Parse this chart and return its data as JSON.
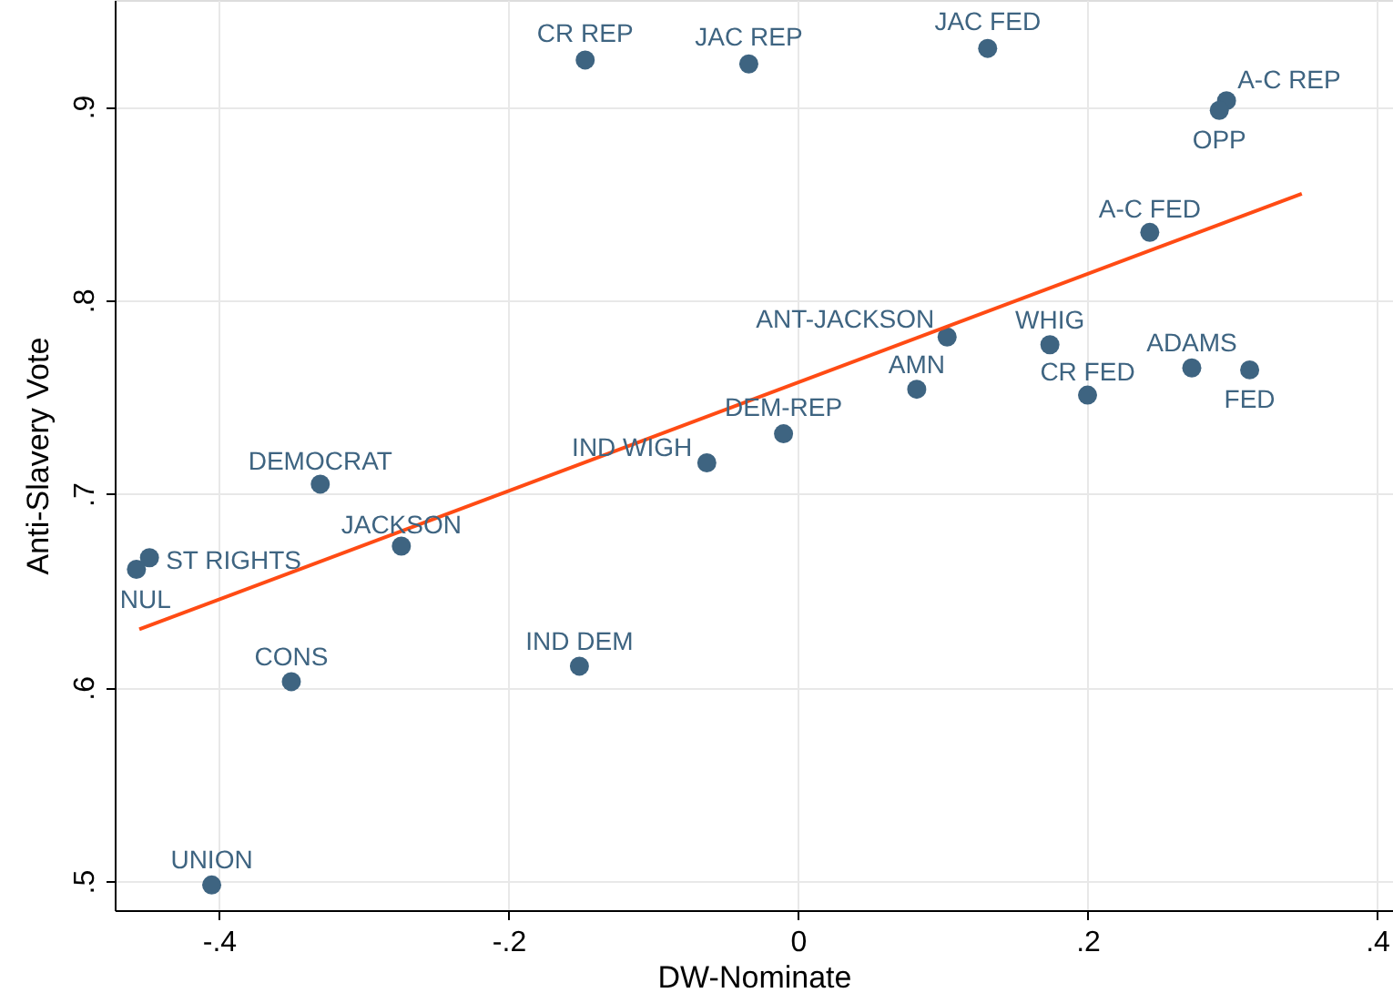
{
  "chart_data": {
    "type": "scatter",
    "xlabel": "DW-Nominate",
    "ylabel": "Anti-Slavery Vote",
    "xlim": [
      -0.472,
      0.411
    ],
    "ylim": [
      0.485,
      0.955
    ],
    "xticks": [
      {
        "value": -0.4,
        "label": "-.4"
      },
      {
        "value": -0.2,
        "label": "-.2"
      },
      0,
      {
        "value": 0.2,
        "label": ".2"
      },
      {
        "value": 0.4,
        "label": ".4"
      }
    ],
    "yticks": [
      {
        "value": 0.5,
        "label": ".5"
      },
      {
        "value": 0.6,
        "label": ".6"
      },
      {
        "value": 0.7,
        "label": ".7"
      },
      {
        "value": 0.8,
        "label": ".8"
      },
      {
        "value": 0.9,
        "label": ".9"
      }
    ],
    "grid": true,
    "series": [
      {
        "color": "#3e6481",
        "marker": "circle",
        "x": [
          -0.147,
          -0.034,
          0.131,
          0.296,
          0.291,
          0.243,
          0.103,
          0.174,
          0.272,
          0.312,
          0.2,
          0.082,
          -0.01,
          -0.063,
          -0.33,
          -0.274,
          -0.448,
          -0.457,
          -0.35,
          -0.151,
          -0.405
        ],
        "values": [
          0.924,
          0.922,
          0.93,
          0.903,
          0.898,
          0.835,
          0.781,
          0.777,
          0.765,
          0.764,
          0.751,
          0.754,
          0.731,
          0.716,
          0.705,
          0.673,
          0.667,
          0.661,
          0.603,
          0.611,
          0.498
        ]
      },
      {
        "type": "line",
        "marker": "none",
        "color": "#ff4b14",
        "x": [
          -0.455,
          0.348
        ],
        "values": [
          0.63,
          0.855
        ]
      }
    ],
    "annotations": [
      {
        "text": "CR REP",
        "x": -0.147,
        "y": 0.924
      },
      {
        "text": "JAC REP",
        "x": -0.034,
        "y": 0.922
      },
      {
        "text": "JAC FED",
        "x": 0.131,
        "y": 0.93
      },
      {
        "text": "A-C REP",
        "x": 0.296,
        "y": 0.903
      },
      {
        "text": "OPP",
        "x": 0.291,
        "y": 0.898
      },
      {
        "text": "A-C FED",
        "x": 0.243,
        "y": 0.835
      },
      {
        "text": "ANT-JACKSON",
        "x": 0.103,
        "y": 0.781
      },
      {
        "text": "WHIG",
        "x": 0.174,
        "y": 0.777
      },
      {
        "text": "ADAMS",
        "x": 0.272,
        "y": 0.765
      },
      {
        "text": "FED",
        "x": 0.312,
        "y": 0.764
      },
      {
        "text": "CR FED",
        "x": 0.2,
        "y": 0.751
      },
      {
        "text": "AMN",
        "x": 0.082,
        "y": 0.754
      },
      {
        "text": "DEM-REP",
        "x": -0.01,
        "y": 0.731
      },
      {
        "text": "IND WIGH",
        "x": -0.063,
        "y": 0.716
      },
      {
        "text": "DEMOCRAT",
        "x": -0.33,
        "y": 0.705
      },
      {
        "text": "JACKSON",
        "x": -0.274,
        "y": 0.673
      },
      {
        "text": "ST RIGHTS",
        "x": -0.448,
        "y": 0.667
      },
      {
        "text": "NUL",
        "x": -0.457,
        "y": 0.661
      },
      {
        "text": "CONS",
        "x": -0.35,
        "y": 0.603
      },
      {
        "text": "IND DEM",
        "x": -0.151,
        "y": 0.611
      },
      {
        "text": "UNION",
        "x": -0.405,
        "y": 0.498
      }
    ]
  }
}
